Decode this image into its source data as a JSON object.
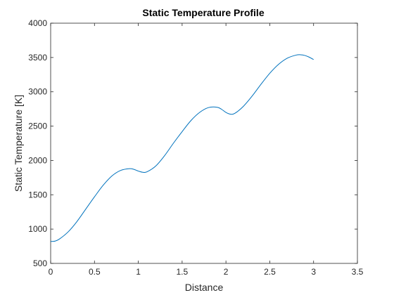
{
  "chart_data": {
    "type": "line",
    "title": "Static Temperature Profile",
    "xlabel": "Distance",
    "ylabel": "Static Temperature [K]",
    "xlim": [
      0,
      3.5
    ],
    "ylim": [
      500,
      4000
    ],
    "x_ticks": [
      "0",
      "0.5",
      "1",
      "1.5",
      "2",
      "2.5",
      "3",
      "3.5"
    ],
    "y_ticks": [
      "500",
      "1000",
      "1500",
      "2000",
      "2500",
      "3000",
      "3500",
      "4000"
    ],
    "grid": false,
    "line_color": "#0072BD",
    "series": [
      {
        "x": [
          0,
          0.05,
          0.1,
          0.2,
          0.3,
          0.4,
          0.5,
          0.6,
          0.7,
          0.8,
          0.9,
          0.95,
          1.0,
          1.05,
          1.1,
          1.2,
          1.3,
          1.4,
          1.5,
          1.6,
          1.7,
          1.8,
          1.9,
          1.95,
          2.0,
          2.05,
          2.1,
          2.2,
          2.3,
          2.4,
          2.5,
          2.6,
          2.7,
          2.8,
          2.85,
          2.9,
          2.95,
          3.0
        ],
        "y": [
          820,
          825,
          855,
          960,
          1110,
          1290,
          1470,
          1640,
          1775,
          1855,
          1880,
          1870,
          1845,
          1828,
          1835,
          1920,
          2070,
          2250,
          2420,
          2580,
          2700,
          2770,
          2775,
          2745,
          2700,
          2675,
          2685,
          2790,
          2940,
          3110,
          3270,
          3400,
          3490,
          3535,
          3540,
          3530,
          3505,
          3470
        ]
      }
    ]
  }
}
